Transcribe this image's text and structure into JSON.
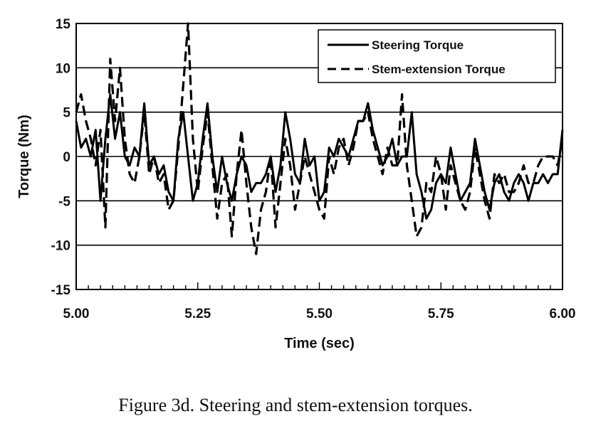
{
  "caption": "Figure 3d.  Steering and stem-extension torques.",
  "chart_data": {
    "type": "line",
    "title": "",
    "xlabel": "Time (sec)",
    "ylabel": "Torque (Nm)",
    "xlim": [
      5.0,
      6.0
    ],
    "ylim": [
      -15,
      15
    ],
    "x_ticks": [
      5.0,
      5.25,
      5.5,
      5.75,
      6.0
    ],
    "x_tick_labels": [
      "5.00",
      "5.25",
      "5.50",
      "5.75",
      "6.00"
    ],
    "y_ticks": [
      15,
      10,
      5,
      0,
      -5,
      -10,
      -15
    ],
    "y_tick_labels": [
      "15",
      "10",
      "5",
      "0",
      "-5",
      "-10",
      "-15"
    ],
    "grid": "horizontal",
    "legend_position": "top-right",
    "series": [
      {
        "name": "Steering Torque",
        "style": "solid",
        "color": "#000000",
        "x": [
          5.0,
          5.01,
          5.02,
          5.03,
          5.04,
          5.05,
          5.06,
          5.07,
          5.08,
          5.09,
          5.1,
          5.11,
          5.12,
          5.13,
          5.14,
          5.15,
          5.16,
          5.17,
          5.18,
          5.19,
          5.2,
          5.21,
          5.22,
          5.23,
          5.24,
          5.25,
          5.26,
          5.27,
          5.28,
          5.29,
          5.3,
          5.31,
          5.32,
          5.33,
          5.34,
          5.35,
          5.36,
          5.37,
          5.38,
          5.39,
          5.4,
          5.41,
          5.42,
          5.43,
          5.44,
          5.45,
          5.46,
          5.47,
          5.48,
          5.49,
          5.5,
          5.51,
          5.52,
          5.53,
          5.54,
          5.55,
          5.56,
          5.57,
          5.58,
          5.59,
          5.6,
          5.61,
          5.62,
          5.63,
          5.64,
          5.65,
          5.66,
          5.67,
          5.68,
          5.69,
          5.7,
          5.71,
          5.72,
          5.73,
          5.74,
          5.75,
          5.76,
          5.77,
          5.78,
          5.79,
          5.8,
          5.81,
          5.82,
          5.83,
          5.84,
          5.85,
          5.86,
          5.87,
          5.88,
          5.89,
          5.9,
          5.91,
          5.92,
          5.93,
          5.94,
          5.95,
          5.96,
          5.97,
          5.98,
          5.99,
          6.0
        ],
        "y": [
          4,
          1,
          2,
          0,
          3,
          -5,
          2,
          7,
          2,
          5,
          0,
          -1,
          1,
          0,
          6,
          -1,
          0,
          -2,
          -1,
          -4,
          -5,
          2,
          5,
          0,
          -5,
          -3,
          2,
          6,
          0,
          -4,
          0,
          -3,
          -5,
          -2,
          0,
          -1,
          -4,
          -3,
          -3,
          -2,
          0,
          -4,
          -1,
          5,
          2,
          -2,
          -3,
          2,
          -1,
          0,
          -5,
          -4,
          1,
          0,
          2,
          1,
          0,
          2,
          4,
          4,
          6,
          3,
          1,
          -1,
          0,
          2,
          -1,
          0,
          0,
          5,
          -2,
          -4,
          -7,
          -6,
          -3,
          -2,
          -3,
          1,
          -2,
          -5,
          -4,
          -3,
          2,
          -1,
          -4,
          -6,
          -3,
          -2,
          -4,
          -5,
          -3,
          -2,
          -3,
          -5,
          -3,
          -3,
          -2,
          -3,
          -2,
          -2,
          3
        ]
      },
      {
        "name": "Stem-extension Torque",
        "style": "dashed",
        "color": "#000000",
        "x": [
          5.0,
          5.01,
          5.02,
          5.03,
          5.04,
          5.05,
          5.06,
          5.07,
          5.08,
          5.09,
          5.1,
          5.11,
          5.12,
          5.13,
          5.14,
          5.15,
          5.16,
          5.17,
          5.18,
          5.19,
          5.2,
          5.21,
          5.22,
          5.23,
          5.24,
          5.25,
          5.26,
          5.27,
          5.28,
          5.29,
          5.3,
          5.31,
          5.32,
          5.33,
          5.34,
          5.35,
          5.36,
          5.37,
          5.38,
          5.39,
          5.4,
          5.41,
          5.42,
          5.43,
          5.44,
          5.45,
          5.46,
          5.47,
          5.48,
          5.49,
          5.5,
          5.51,
          5.52,
          5.53,
          5.54,
          5.55,
          5.56,
          5.57,
          5.58,
          5.59,
          5.6,
          5.61,
          5.62,
          5.63,
          5.64,
          5.65,
          5.66,
          5.67,
          5.68,
          5.69,
          5.7,
          5.71,
          5.72,
          5.73,
          5.74,
          5.75,
          5.76,
          5.77,
          5.78,
          5.79,
          5.8,
          5.81,
          5.82,
          5.83,
          5.84,
          5.85,
          5.86,
          5.87,
          5.88,
          5.89,
          5.9,
          5.91,
          5.92,
          5.93,
          5.94,
          5.95,
          5.96,
          5.97,
          5.98,
          5.99,
          6.0
        ],
        "y": [
          5,
          7,
          4,
          2,
          -1,
          3,
          -8,
          11,
          4,
          10,
          2,
          -2,
          -3,
          0,
          5,
          -2,
          0,
          -3,
          -2,
          -6,
          -5,
          1,
          8,
          15,
          2,
          -4,
          1,
          5,
          -1,
          -7,
          -3,
          -2,
          -9,
          -2,
          3,
          -3,
          -8,
          -11,
          -6,
          -4,
          0,
          -8,
          -3,
          2,
          -1,
          -6,
          -3,
          0,
          -2,
          -4,
          -6,
          -7,
          0,
          -2,
          1,
          2,
          -1,
          1,
          4,
          4,
          5,
          2,
          0,
          -2,
          1,
          -1,
          -1,
          7,
          -1,
          -5,
          -9,
          -8,
          -3,
          -4,
          0,
          -2,
          -6,
          -1,
          -3,
          -5,
          -6,
          -4,
          1,
          -2,
          -5,
          -7,
          -2,
          -3,
          -2,
          -4,
          -4,
          -3,
          -1,
          -3,
          -3,
          -1,
          0,
          0,
          0,
          -1,
          2
        ]
      }
    ]
  }
}
